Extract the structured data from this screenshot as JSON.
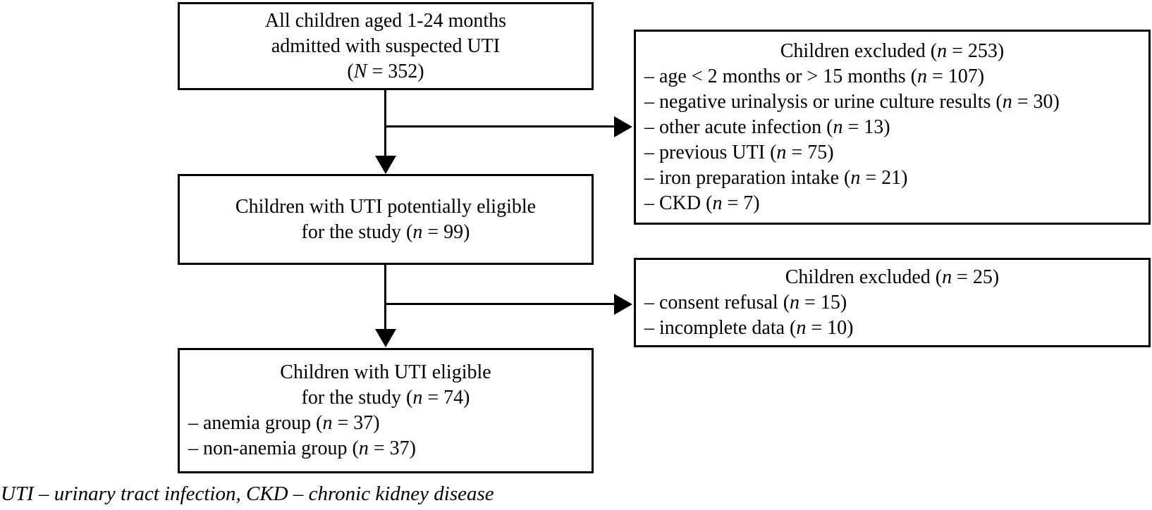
{
  "colors": {
    "line": "#000000",
    "text": "#000000",
    "background": "#ffffff"
  },
  "flowchart": {
    "initial": {
      "lines": [
        {
          "pre": "All children aged 1-24 months"
        },
        {
          "pre": "admitted with suspected UTI"
        },
        {
          "pre": "(",
          "var": "N",
          "post": " = 352)"
        }
      ]
    },
    "excluded1": {
      "title": {
        "pre": "Children excluded (",
        "var": "n",
        "post": " = 253)"
      },
      "items": [
        {
          "pre": "– age < 2 months or > 15 months (",
          "var": "n",
          "post": " = 107)"
        },
        {
          "pre": "– negative urinalysis or urine culture results (",
          "var": "n",
          "post": " = 30)"
        },
        {
          "pre": "– other acute infection (",
          "var": "n",
          "post": " = 13)"
        },
        {
          "pre": "– previous UTI (",
          "var": "n",
          "post": " = 75)"
        },
        {
          "pre": "– iron preparation intake (",
          "var": "n",
          "post": " = 21)"
        },
        {
          "pre": "– CKD (",
          "var": "n",
          "post": " = 7)"
        }
      ]
    },
    "eligible": {
      "lines": [
        {
          "pre": "Children with UTI potentially eligible"
        },
        {
          "pre": "for the study (",
          "var": "n",
          "post": " = 99)"
        }
      ]
    },
    "excluded2": {
      "title": {
        "pre": "Children excluded (",
        "var": "n",
        "post": " = 25)"
      },
      "items": [
        {
          "pre": "– consent refusal (",
          "var": "n",
          "post": " = 15)"
        },
        {
          "pre": "– incomplete data (",
          "var": "n",
          "post": " = 10)"
        }
      ]
    },
    "final": {
      "lines": [
        {
          "pre": "Children with UTI eligible"
        },
        {
          "pre": "for the study (",
          "var": "n",
          "post": " = 74)"
        }
      ],
      "items": [
        {
          "pre": "– anemia group (",
          "var": "n",
          "post": " = 37)"
        },
        {
          "pre": "– non-anemia group (",
          "var": "n",
          "post": " = 37)"
        }
      ]
    }
  },
  "footnote": "UTI – urinary tract infection, CKD – chronic kidney disease"
}
